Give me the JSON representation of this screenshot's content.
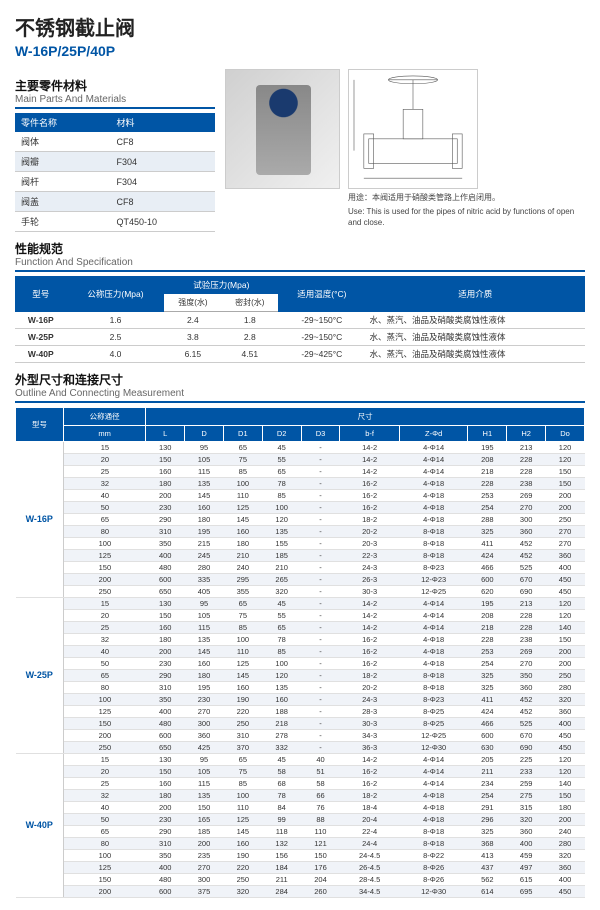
{
  "title": {
    "cn": "不锈钢截止阀",
    "en": "W-16P/25P/40P"
  },
  "sections": {
    "materials": {
      "cn": "主要零件材料",
      "en": "Main Parts And Materials"
    },
    "spec": {
      "cn": "性能规范",
      "en": "Function And Specification"
    },
    "dims": {
      "cn": "外型尺寸和连接尺寸",
      "en": "Outline And Connecting Measurement"
    }
  },
  "use": {
    "cn": "用途：本阀适用于硝酸类管路上作启闭用。",
    "en": "Use: This is used for the pipes of nitric acid by functions of open and close."
  },
  "mat_hdr": {
    "name": "零件名称",
    "mat": "材料"
  },
  "materials": [
    {
      "n": "阀体",
      "m": "CF8"
    },
    {
      "n": "阀瓣",
      "m": "F304"
    },
    {
      "n": "阀杆",
      "m": "F304"
    },
    {
      "n": "阀盖",
      "m": "CF8"
    },
    {
      "n": "手轮",
      "m": "QT450-10"
    }
  ],
  "spec_hdr": {
    "model": "型号",
    "press": "公称压力(Mpa)",
    "test": "试验压力(Mpa)",
    "temp": "适用温度(°C)",
    "media": "适用介质",
    "str": "强度(水)",
    "seal": "密封(水)"
  },
  "specs": [
    {
      "m": "W-16P",
      "p": "1.6",
      "s": "2.4",
      "e": "1.8",
      "t": "-29~150°C",
      "md": "水、蒸汽、油品及硝酸类腐蚀性液体"
    },
    {
      "m": "W-25P",
      "p": "2.5",
      "s": "3.8",
      "e": "2.8",
      "t": "-29~150°C",
      "md": "水、蒸汽、油品及硝酸类腐蚀性液体"
    },
    {
      "m": "W-40P",
      "p": "4.0",
      "s": "6.15",
      "e": "4.51",
      "t": "-29~425°C",
      "md": "水、蒸汽、油品及硝酸类腐蚀性液体"
    }
  ],
  "dim_hdr": {
    "model": "型号",
    "dn": "公称通径",
    "size": "尺寸",
    "mm": "mm",
    "cols": [
      "L",
      "D",
      "D1",
      "D2",
      "D3",
      "b-f",
      "Z-Φd",
      "H1",
      "H2",
      "Do"
    ]
  },
  "dims": [
    {
      "model": "W-16P",
      "rows": [
        [
          "15",
          "130",
          "95",
          "65",
          "45",
          "-",
          "14-2",
          "4-Φ14",
          "195",
          "213",
          "120"
        ],
        [
          "20",
          "150",
          "105",
          "75",
          "55",
          "-",
          "14-2",
          "4-Φ14",
          "208",
          "228",
          "120"
        ],
        [
          "25",
          "160",
          "115",
          "85",
          "65",
          "-",
          "14-2",
          "4-Φ14",
          "218",
          "228",
          "150"
        ],
        [
          "32",
          "180",
          "135",
          "100",
          "78",
          "-",
          "16-2",
          "4-Φ18",
          "228",
          "238",
          "150"
        ],
        [
          "40",
          "200",
          "145",
          "110",
          "85",
          "-",
          "16-2",
          "4-Φ18",
          "253",
          "269",
          "200"
        ],
        [
          "50",
          "230",
          "160",
          "125",
          "100",
          "-",
          "16-2",
          "4-Φ18",
          "254",
          "270",
          "200"
        ],
        [
          "65",
          "290",
          "180",
          "145",
          "120",
          "-",
          "18-2",
          "4-Φ18",
          "288",
          "300",
          "250"
        ],
        [
          "80",
          "310",
          "195",
          "160",
          "135",
          "-",
          "20-2",
          "8-Φ18",
          "325",
          "360",
          "270"
        ],
        [
          "100",
          "350",
          "215",
          "180",
          "155",
          "-",
          "20-3",
          "8-Φ18",
          "411",
          "452",
          "270"
        ],
        [
          "125",
          "400",
          "245",
          "210",
          "185",
          "-",
          "22-3",
          "8-Φ18",
          "424",
          "452",
          "360"
        ],
        [
          "150",
          "480",
          "280",
          "240",
          "210",
          "-",
          "24-3",
          "8-Φ23",
          "466",
          "525",
          "400"
        ],
        [
          "200",
          "600",
          "335",
          "295",
          "265",
          "-",
          "26-3",
          "12-Φ23",
          "600",
          "670",
          "450"
        ],
        [
          "250",
          "650",
          "405",
          "355",
          "320",
          "-",
          "30-3",
          "12-Φ25",
          "620",
          "690",
          "450"
        ]
      ]
    },
    {
      "model": "W-25P",
      "rows": [
        [
          "15",
          "130",
          "95",
          "65",
          "45",
          "-",
          "14-2",
          "4-Φ14",
          "195",
          "213",
          "120"
        ],
        [
          "20",
          "150",
          "105",
          "75",
          "55",
          "-",
          "14-2",
          "4-Φ14",
          "208",
          "228",
          "120"
        ],
        [
          "25",
          "160",
          "115",
          "85",
          "65",
          "-",
          "14-2",
          "4-Φ14",
          "218",
          "228",
          "140"
        ],
        [
          "32",
          "180",
          "135",
          "100",
          "78",
          "-",
          "16-2",
          "4-Φ18",
          "228",
          "238",
          "150"
        ],
        [
          "40",
          "200",
          "145",
          "110",
          "85",
          "-",
          "16-2",
          "4-Φ18",
          "253",
          "269",
          "200"
        ],
        [
          "50",
          "230",
          "160",
          "125",
          "100",
          "-",
          "16-2",
          "4-Φ18",
          "254",
          "270",
          "200"
        ],
        [
          "65",
          "290",
          "180",
          "145",
          "120",
          "-",
          "18-2",
          "8-Φ18",
          "325",
          "350",
          "250"
        ],
        [
          "80",
          "310",
          "195",
          "160",
          "135",
          "-",
          "20-2",
          "8-Φ18",
          "325",
          "360",
          "280"
        ],
        [
          "100",
          "350",
          "230",
          "190",
          "160",
          "-",
          "24-3",
          "8-Φ23",
          "411",
          "452",
          "320"
        ],
        [
          "125",
          "400",
          "270",
          "220",
          "188",
          "-",
          "28-3",
          "8-Φ25",
          "424",
          "452",
          "360"
        ],
        [
          "150",
          "480",
          "300",
          "250",
          "218",
          "-",
          "30-3",
          "8-Φ25",
          "466",
          "525",
          "400"
        ],
        [
          "200",
          "600",
          "360",
          "310",
          "278",
          "-",
          "34-3",
          "12-Φ25",
          "600",
          "670",
          "450"
        ],
        [
          "250",
          "650",
          "425",
          "370",
          "332",
          "-",
          "36-3",
          "12-Φ30",
          "630",
          "690",
          "450"
        ]
      ]
    },
    {
      "model": "W-40P",
      "rows": [
        [
          "15",
          "130",
          "95",
          "65",
          "45",
          "40",
          "14-2",
          "4-Φ14",
          "205",
          "225",
          "120"
        ],
        [
          "20",
          "150",
          "105",
          "75",
          "58",
          "51",
          "16-2",
          "4-Φ14",
          "211",
          "233",
          "120"
        ],
        [
          "25",
          "160",
          "115",
          "85",
          "68",
          "58",
          "16-2",
          "4-Φ14",
          "234",
          "259",
          "140"
        ],
        [
          "32",
          "180",
          "135",
          "100",
          "78",
          "66",
          "18-2",
          "4-Φ18",
          "254",
          "275",
          "150"
        ],
        [
          "40",
          "200",
          "150",
          "110",
          "84",
          "76",
          "18-4",
          "4-Φ18",
          "291",
          "315",
          "180"
        ],
        [
          "50",
          "230",
          "165",
          "125",
          "99",
          "88",
          "20-4",
          "4-Φ18",
          "296",
          "320",
          "200"
        ],
        [
          "65",
          "290",
          "185",
          "145",
          "118",
          "110",
          "22-4",
          "8-Φ18",
          "325",
          "360",
          "240"
        ],
        [
          "80",
          "310",
          "200",
          "160",
          "132",
          "121",
          "24-4",
          "8-Φ18",
          "368",
          "400",
          "280"
        ],
        [
          "100",
          "350",
          "235",
          "190",
          "156",
          "150",
          "24-4.5",
          "8-Φ22",
          "413",
          "459",
          "320"
        ],
        [
          "125",
          "400",
          "270",
          "220",
          "184",
          "176",
          "26-4.5",
          "8-Φ26",
          "437",
          "497",
          "360"
        ],
        [
          "150",
          "480",
          "300",
          "250",
          "211",
          "204",
          "28-4.5",
          "8-Φ26",
          "562",
          "615",
          "400"
        ],
        [
          "200",
          "600",
          "375",
          "320",
          "284",
          "260",
          "34-4.5",
          "12-Φ30",
          "614",
          "695",
          "450"
        ]
      ]
    }
  ]
}
